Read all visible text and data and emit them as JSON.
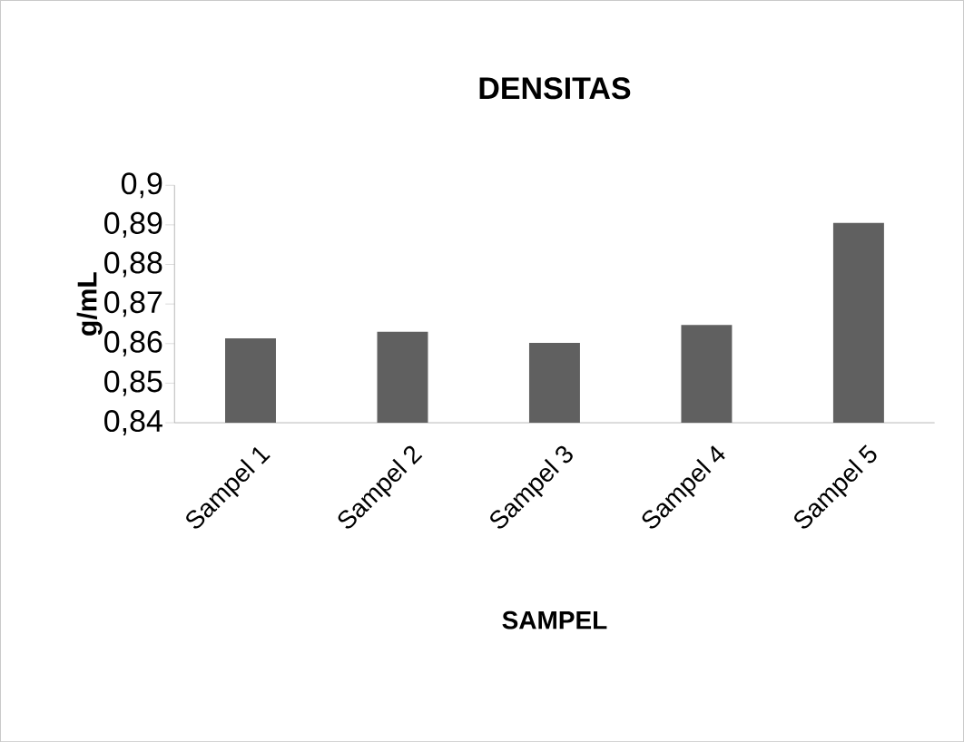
{
  "chart_data": {
    "type": "bar",
    "title": "DENSITAS",
    "xlabel": "SAMPEL",
    "ylabel": "g/mL",
    "categories": [
      "Sampel 1",
      "Sampel 2",
      "Sampel 3",
      "Sampel 4",
      "Sampel 5"
    ],
    "values": [
      0.8613,
      0.863,
      0.8602,
      0.8647,
      0.8905
    ],
    "color": "#606060",
    "ylim": [
      0.84,
      0.9
    ],
    "yticks": [
      {
        "value": 0.84,
        "label": "0,84"
      },
      {
        "value": 0.85,
        "label": "0,85"
      },
      {
        "value": 0.86,
        "label": "0,86"
      },
      {
        "value": 0.87,
        "label": "0,87"
      },
      {
        "value": 0.88,
        "label": "0,88"
      },
      {
        "value": 0.89,
        "label": "0,89"
      },
      {
        "value": 0.9,
        "label": "0,9"
      }
    ],
    "grid": false
  }
}
